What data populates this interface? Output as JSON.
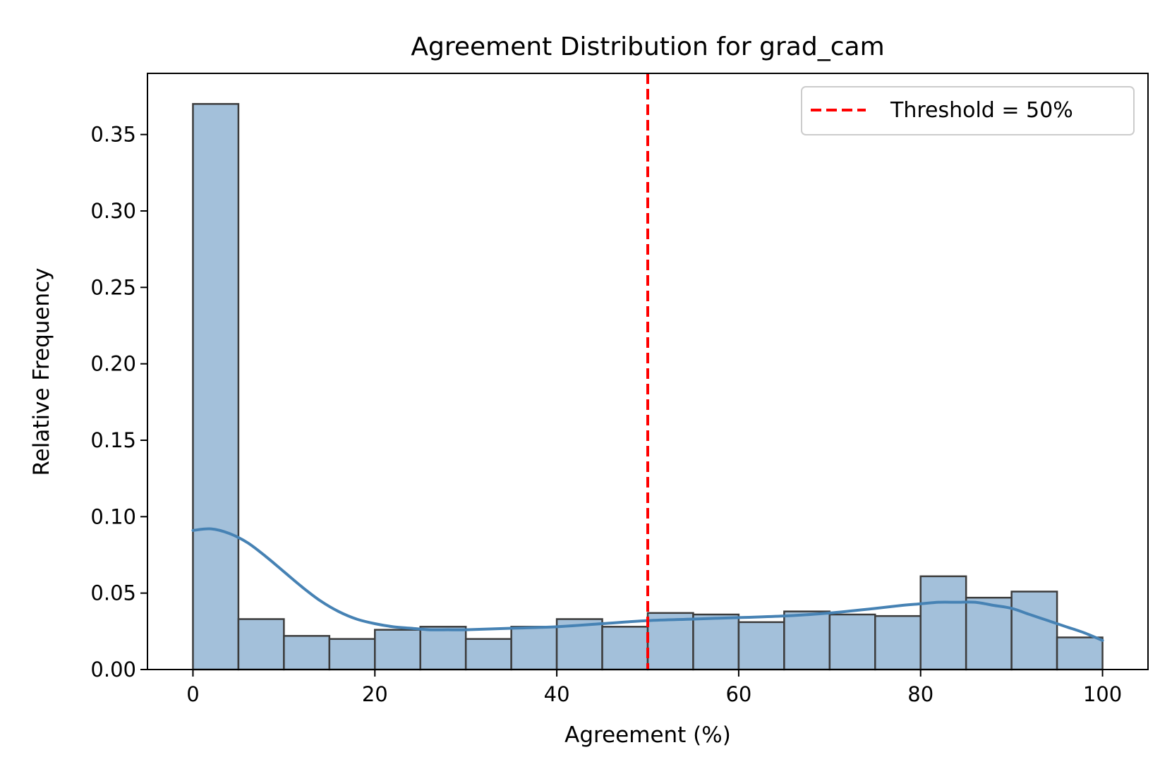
{
  "chart_data": {
    "type": "bar",
    "title": "Agreement Distribution for grad_cam",
    "xlabel": "Agreement (%)",
    "ylabel": "Relative Frequency",
    "xlim": [
      -5,
      105
    ],
    "ylim": [
      0,
      0.39
    ],
    "x_ticks": [
      0,
      20,
      40,
      60,
      80,
      100
    ],
    "x_tick_labels": [
      "0",
      "20",
      "40",
      "60",
      "80",
      "100"
    ],
    "y_ticks": [
      0,
      0.05,
      0.1,
      0.15,
      0.2,
      0.25,
      0.3,
      0.35
    ],
    "y_tick_labels": [
      "0.00",
      "0.05",
      "0.10",
      "0.15",
      "0.20",
      "0.25",
      "0.30",
      "0.35"
    ],
    "grid": false,
    "bin_edges": [
      0,
      5,
      10,
      15,
      20,
      25,
      30,
      35,
      40,
      45,
      50,
      55,
      60,
      65,
      70,
      75,
      80,
      85,
      90,
      95,
      100
    ],
    "values": [
      0.37,
      0.033,
      0.022,
      0.02,
      0.026,
      0.028,
      0.02,
      0.028,
      0.033,
      0.028,
      0.037,
      0.036,
      0.031,
      0.038,
      0.036,
      0.035,
      0.061,
      0.047,
      0.051,
      0.021
    ],
    "bar_color": "#a3c0da",
    "bar_edge_color": "#3c3c3c",
    "kde": {
      "color": "#4682b4",
      "x": [
        0,
        2,
        4,
        6,
        8,
        10,
        12,
        14,
        16,
        18,
        20,
        22,
        24,
        26,
        28,
        30,
        35,
        40,
        45,
        50,
        55,
        60,
        65,
        70,
        75,
        78,
        80,
        82,
        84,
        86,
        88,
        90,
        92,
        94,
        96,
        98,
        100
      ],
      "y": [
        0.091,
        0.092,
        0.089,
        0.083,
        0.074,
        0.064,
        0.054,
        0.045,
        0.038,
        0.033,
        0.03,
        0.028,
        0.027,
        0.026,
        0.026,
        0.026,
        0.027,
        0.028,
        0.03,
        0.032,
        0.033,
        0.034,
        0.035,
        0.037,
        0.04,
        0.042,
        0.043,
        0.044,
        0.044,
        0.044,
        0.042,
        0.04,
        0.036,
        0.032,
        0.028,
        0.024,
        0.019
      ]
    },
    "threshold": {
      "x": 50,
      "color": "#ff0000",
      "label": "Threshold = 50%"
    },
    "legend_position": "top-right"
  }
}
